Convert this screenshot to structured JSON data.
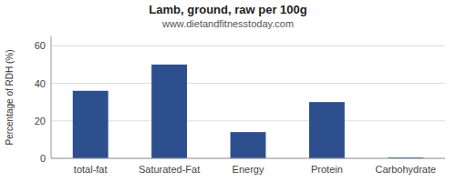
{
  "chart_data": {
    "type": "bar",
    "title": "Lamb, ground, raw per 100g",
    "subtitle": "www.dietandfitnesstoday.com",
    "categories": [
      "total-fat",
      "Saturated-Fat",
      "Energy",
      "Protein",
      "Carbohydrate"
    ],
    "values": [
      36,
      50,
      14,
      30,
      0.5
    ],
    "color": "#2d4f8e",
    "ylabel": "Percentage of RDH (%)",
    "ylim": [
      0,
      65
    ],
    "yticks": [
      0,
      20,
      40,
      60
    ],
    "grid": true
  }
}
